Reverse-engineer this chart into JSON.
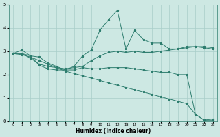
{
  "xlabel": "Humidex (Indice chaleur)",
  "x": [
    0,
    1,
    2,
    3,
    4,
    5,
    6,
    7,
    8,
    9,
    10,
    11,
    12,
    13,
    14,
    15,
    16,
    17,
    18,
    19,
    20,
    21,
    22,
    23
  ],
  "line1": [
    2.9,
    3.05,
    2.8,
    2.75,
    2.5,
    2.35,
    2.2,
    2.35,
    2.8,
    3.05,
    3.9,
    4.35,
    4.75,
    3.1,
    3.9,
    3.5,
    3.35,
    3.35,
    3.1,
    3.1,
    3.2,
    3.2,
    3.15,
    3.1
  ],
  "line2": [
    2.9,
    2.9,
    2.7,
    2.45,
    2.35,
    2.3,
    2.25,
    2.3,
    2.35,
    2.6,
    2.8,
    2.95,
    3.0,
    2.95,
    3.0,
    2.95,
    2.95,
    3.0,
    3.05,
    3.1,
    3.15,
    3.2,
    3.2,
    3.15
  ],
  "line3": [
    2.9,
    2.9,
    2.8,
    2.4,
    2.25,
    2.2,
    2.2,
    2.2,
    2.3,
    2.25,
    2.25,
    2.3,
    2.3,
    2.3,
    2.25,
    2.2,
    2.15,
    2.1,
    2.1,
    2.0,
    2.0,
    0.3,
    0.05,
    0.05
  ],
  "line4": [
    2.9,
    2.85,
    2.75,
    2.6,
    2.45,
    2.3,
    2.15,
    2.05,
    1.95,
    1.85,
    1.75,
    1.65,
    1.55,
    1.45,
    1.35,
    1.25,
    1.15,
    1.05,
    0.95,
    0.85,
    0.75,
    0.3,
    0.05,
    0.1
  ],
  "color": "#2d7d6e",
  "bg_color": "#cde8e3",
  "grid_color": "#a8cec9",
  "ylim": [
    0,
    5
  ],
  "xlim": [
    0,
    23
  ]
}
